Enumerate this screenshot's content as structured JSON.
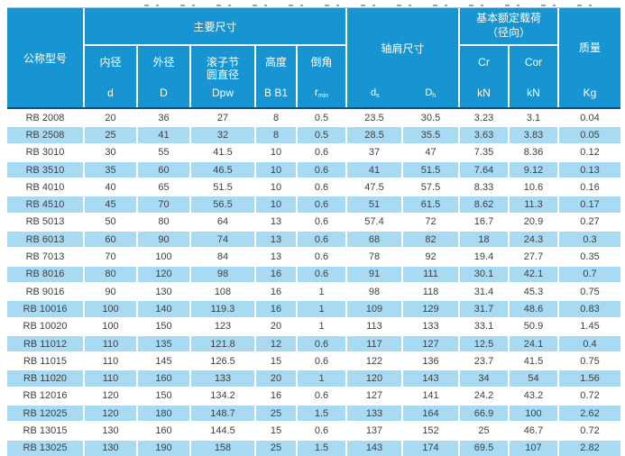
{
  "colors": {
    "header_bg": "#1795d3",
    "alt_row_bg": "#a9daf3",
    "header_divider": "#224c63",
    "body_text": "#3f3f3f",
    "header_text": "#ffffff"
  },
  "table": {
    "header": {
      "model_label": "公称型号",
      "main_group_label": "主要尺寸",
      "sub_columns": {
        "inner": {
          "label": "内径",
          "symbol": "d"
        },
        "outer": {
          "label": "外径",
          "symbol": "D"
        },
        "pitch": {
          "label": "滚子节圆直径",
          "symbol": "Dpw"
        },
        "height": {
          "label": "高度",
          "symbol": "B B1"
        },
        "chamfer": {
          "label": "倒角",
          "symbol_base": "r",
          "symbol_sub": "min"
        }
      },
      "shoulder": {
        "label": "轴肩尺寸",
        "col1_base": "d",
        "col1_sub": "s",
        "col2_base": "D",
        "col2_sub": "h"
      },
      "load": {
        "label_line1": "基本额定载荷",
        "label_line2": "（径向）",
        "col1_symbol": "Cr",
        "col1_unit": "kN",
        "col2_symbol": "Cor",
        "col2_unit": "kN"
      },
      "mass": {
        "label": "质量",
        "unit": "Kg"
      }
    },
    "rows": [
      [
        "RB 2008",
        "20",
        "36",
        "27",
        "8",
        "0.5",
        "23.5",
        "30.5",
        "3.23",
        "3.1",
        "0.04"
      ],
      [
        "RB 2508",
        "25",
        "41",
        "32",
        "8",
        "0.5",
        "28.5",
        "35.5",
        "3.63",
        "3.83",
        "0.05"
      ],
      [
        "RB 3010",
        "30",
        "55",
        "41.5",
        "10",
        "0.6",
        "37",
        "47",
        "7.35",
        "8.36",
        "0.12"
      ],
      [
        "RB 3510",
        "35",
        "60",
        "46.5",
        "10",
        "0.6",
        "41",
        "51.5",
        "7.64",
        "9.12",
        "0.13"
      ],
      [
        "RB 4010",
        "40",
        "65",
        "51.5",
        "10",
        "0.6",
        "47.5",
        "57.5",
        "8.33",
        "10.6",
        "0.16"
      ],
      [
        "RB 4510",
        "45",
        "70",
        "56.5",
        "10",
        "0.6",
        "51",
        "61.5",
        "8.62",
        "11.3",
        "0.17"
      ],
      [
        "RB 5013",
        "50",
        "80",
        "64",
        "13",
        "0.6",
        "57.4",
        "72",
        "16.7",
        "20.9",
        "0.27"
      ],
      [
        "RB 6013",
        "60",
        "90",
        "74",
        "13",
        "0.6",
        "68",
        "82",
        "18",
        "24.3",
        "0.3"
      ],
      [
        "RB 7013",
        "70",
        "100",
        "84",
        "13",
        "0.6",
        "78",
        "92",
        "19.4",
        "27.7",
        "0.35"
      ],
      [
        "RB 8016",
        "80",
        "120",
        "98",
        "16",
        "0.6",
        "91",
        "111",
        "30.1",
        "42.1",
        "0.7"
      ],
      [
        "RB 9016",
        "90",
        "130",
        "108",
        "16",
        "1",
        "98",
        "118",
        "31.4",
        "45.3",
        "0.75"
      ],
      [
        "RB 10016",
        "100",
        "140",
        "119.3",
        "16",
        "1",
        "109",
        "129",
        "31.7",
        "48.6",
        "0.83"
      ],
      [
        "RB 10020",
        "100",
        "150",
        "123",
        "20",
        "1",
        "113",
        "133",
        "33.1",
        "50.9",
        "1.45"
      ],
      [
        "RB 11012",
        "110",
        "135",
        "121.8",
        "12",
        "0.6",
        "117",
        "127",
        "12.5",
        "24.1",
        "0.4"
      ],
      [
        "RB 11015",
        "110",
        "145",
        "126.5",
        "15",
        "0.6",
        "122",
        "136",
        "23.7",
        "41.5",
        "0.75"
      ],
      [
        "RB 11020",
        "110",
        "160",
        "133",
        "20",
        "1",
        "120",
        "143",
        "34",
        "54",
        "1.56"
      ],
      [
        "RB 12016",
        "120",
        "150",
        "134.2",
        "16",
        "0.6",
        "127",
        "141",
        "24.2",
        "43.2",
        "0.72"
      ],
      [
        "RB 12025",
        "120",
        "180",
        "148.7",
        "25",
        "1.5",
        "133",
        "164",
        "66.9",
        "100",
        "2.62"
      ],
      [
        "RB 13015",
        "130",
        "160",
        "144.5",
        "15",
        "0.6",
        "137",
        "152",
        "25",
        "46.7",
        "0.72"
      ],
      [
        "RB 13025",
        "130",
        "190",
        "158",
        "25",
        "1.5",
        "143",
        "174",
        "69.5",
        "107",
        "2.82"
      ]
    ]
  }
}
